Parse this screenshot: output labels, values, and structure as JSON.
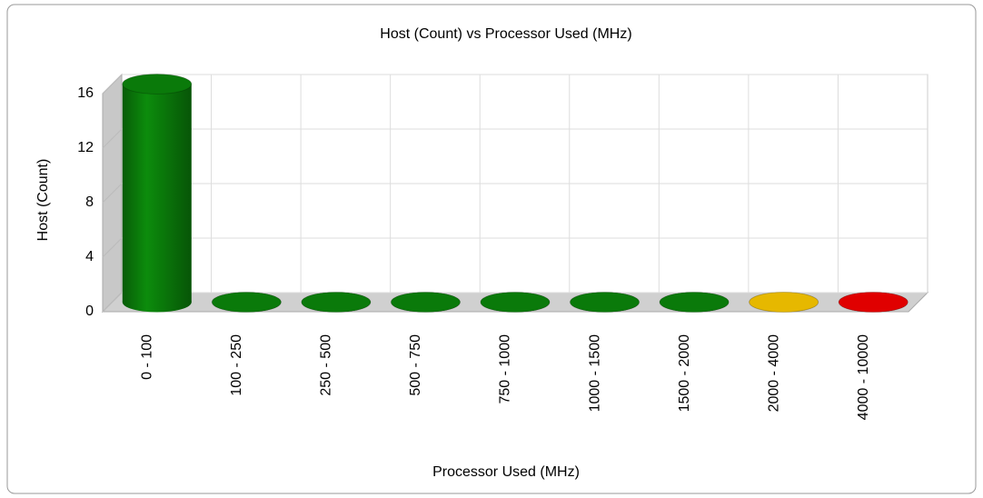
{
  "chart_data": {
    "type": "bar",
    "title": "Host (Count) vs Processor Used (MHz)",
    "x_label": "Processor Used (MHz)",
    "y_label": "Host (Count)",
    "categories": [
      "0 - 100",
      "100 - 250",
      "250 - 500",
      "500 - 750",
      "750 - 1000",
      "1000 - 1500",
      "1500 - 2000",
      "2000 - 4000",
      "4000 - 10000"
    ],
    "values": [
      16,
      0,
      0,
      0,
      0,
      0,
      0,
      0,
      0
    ],
    "colors": [
      "#0a7a0a",
      "#0a7a0a",
      "#0a7a0a",
      "#0a7a0a",
      "#0a7a0a",
      "#0a7a0a",
      "#0a7a0a",
      "#e6b800",
      "#e00000"
    ],
    "ylim": [
      0,
      16
    ],
    "yticks": [
      0,
      4,
      8,
      12,
      16
    ],
    "grid": true
  }
}
